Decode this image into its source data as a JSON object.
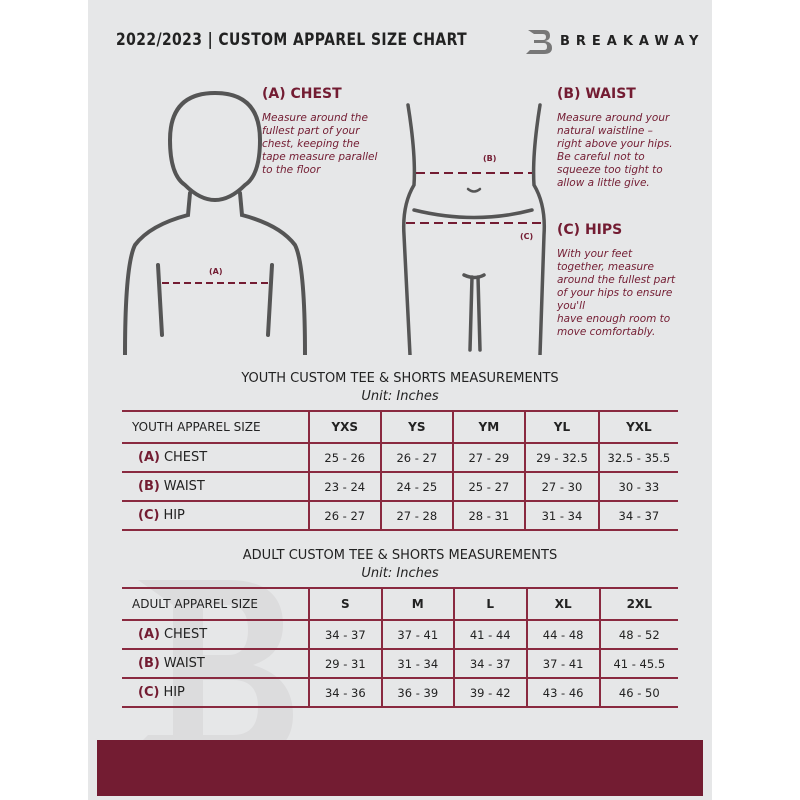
{
  "header": {
    "title": "2022/2023  |  CUSTOM APPAREL SIZE CHART",
    "brand": "BREAKAWAY"
  },
  "measures": {
    "chest": {
      "label": "(A)",
      "title": "(A) CHEST",
      "desc": "Measure around the\nfullest part of your\nchest, keeping the\ntape measure parallel\nto the floor"
    },
    "waist": {
      "label": "(B)",
      "title": "(B) WAIST",
      "desc": "Measure around your\nnatural waistline –\nright above your hips.\nBe careful not to\nsqueeze too tight to\nallow a little give."
    },
    "hips": {
      "label": "(C)",
      "title": "(C) HIPS",
      "desc": "With your feet\ntogether, measure\naround the fullest part\nof your hips to ensure\nyou'll\nhave enough room to\nmove comfortably."
    }
  },
  "youth": {
    "title": "YOUTH CUSTOM TEE & SHORTS MEASUREMENTS",
    "unit": "Unit: Inches",
    "header": [
      "YOUTH APPAREL SIZE",
      "YXS",
      "YS",
      "YM",
      "YL",
      "YXL"
    ],
    "rows": [
      {
        "tag": "(A)",
        "name": "CHEST",
        "values": [
          "25 - 26",
          "26 - 27",
          "27 - 29",
          "29 - 32.5",
          "32.5 - 35.5"
        ]
      },
      {
        "tag": "(B)",
        "name": "WAIST",
        "values": [
          "23 - 24",
          "24 - 25",
          "25 - 27",
          "27 - 30",
          "30 - 33"
        ]
      },
      {
        "tag": "(C)",
        "name": "HIP",
        "values": [
          "26 - 27",
          "27 - 28",
          "28 - 31",
          "31 - 34",
          "34 - 37"
        ]
      }
    ]
  },
  "adult": {
    "title": "ADULT CUSTOM TEE & SHORTS MEASUREMENTS",
    "unit": "Unit: Inches",
    "header": [
      "ADULT APPAREL SIZE",
      "S",
      "M",
      "L",
      "XL",
      "2XL"
    ],
    "rows": [
      {
        "tag": "(A)",
        "name": "CHEST",
        "values": [
          "34 - 37",
          "37 - 41",
          "41 - 44",
          "44 - 48",
          "48 - 52"
        ]
      },
      {
        "tag": "(B)",
        "name": "WAIST",
        "values": [
          "29 - 31",
          "31 - 34",
          "34 - 37",
          "37 - 41",
          "41 - 45.5"
        ]
      },
      {
        "tag": "(C)",
        "name": "HIP",
        "values": [
          "34 - 36",
          "36 - 39",
          "39 - 42",
          "43 - 46",
          "46 - 50"
        ]
      }
    ]
  },
  "colors": {
    "accent": "#731c32",
    "background": "#e6e7e8"
  }
}
